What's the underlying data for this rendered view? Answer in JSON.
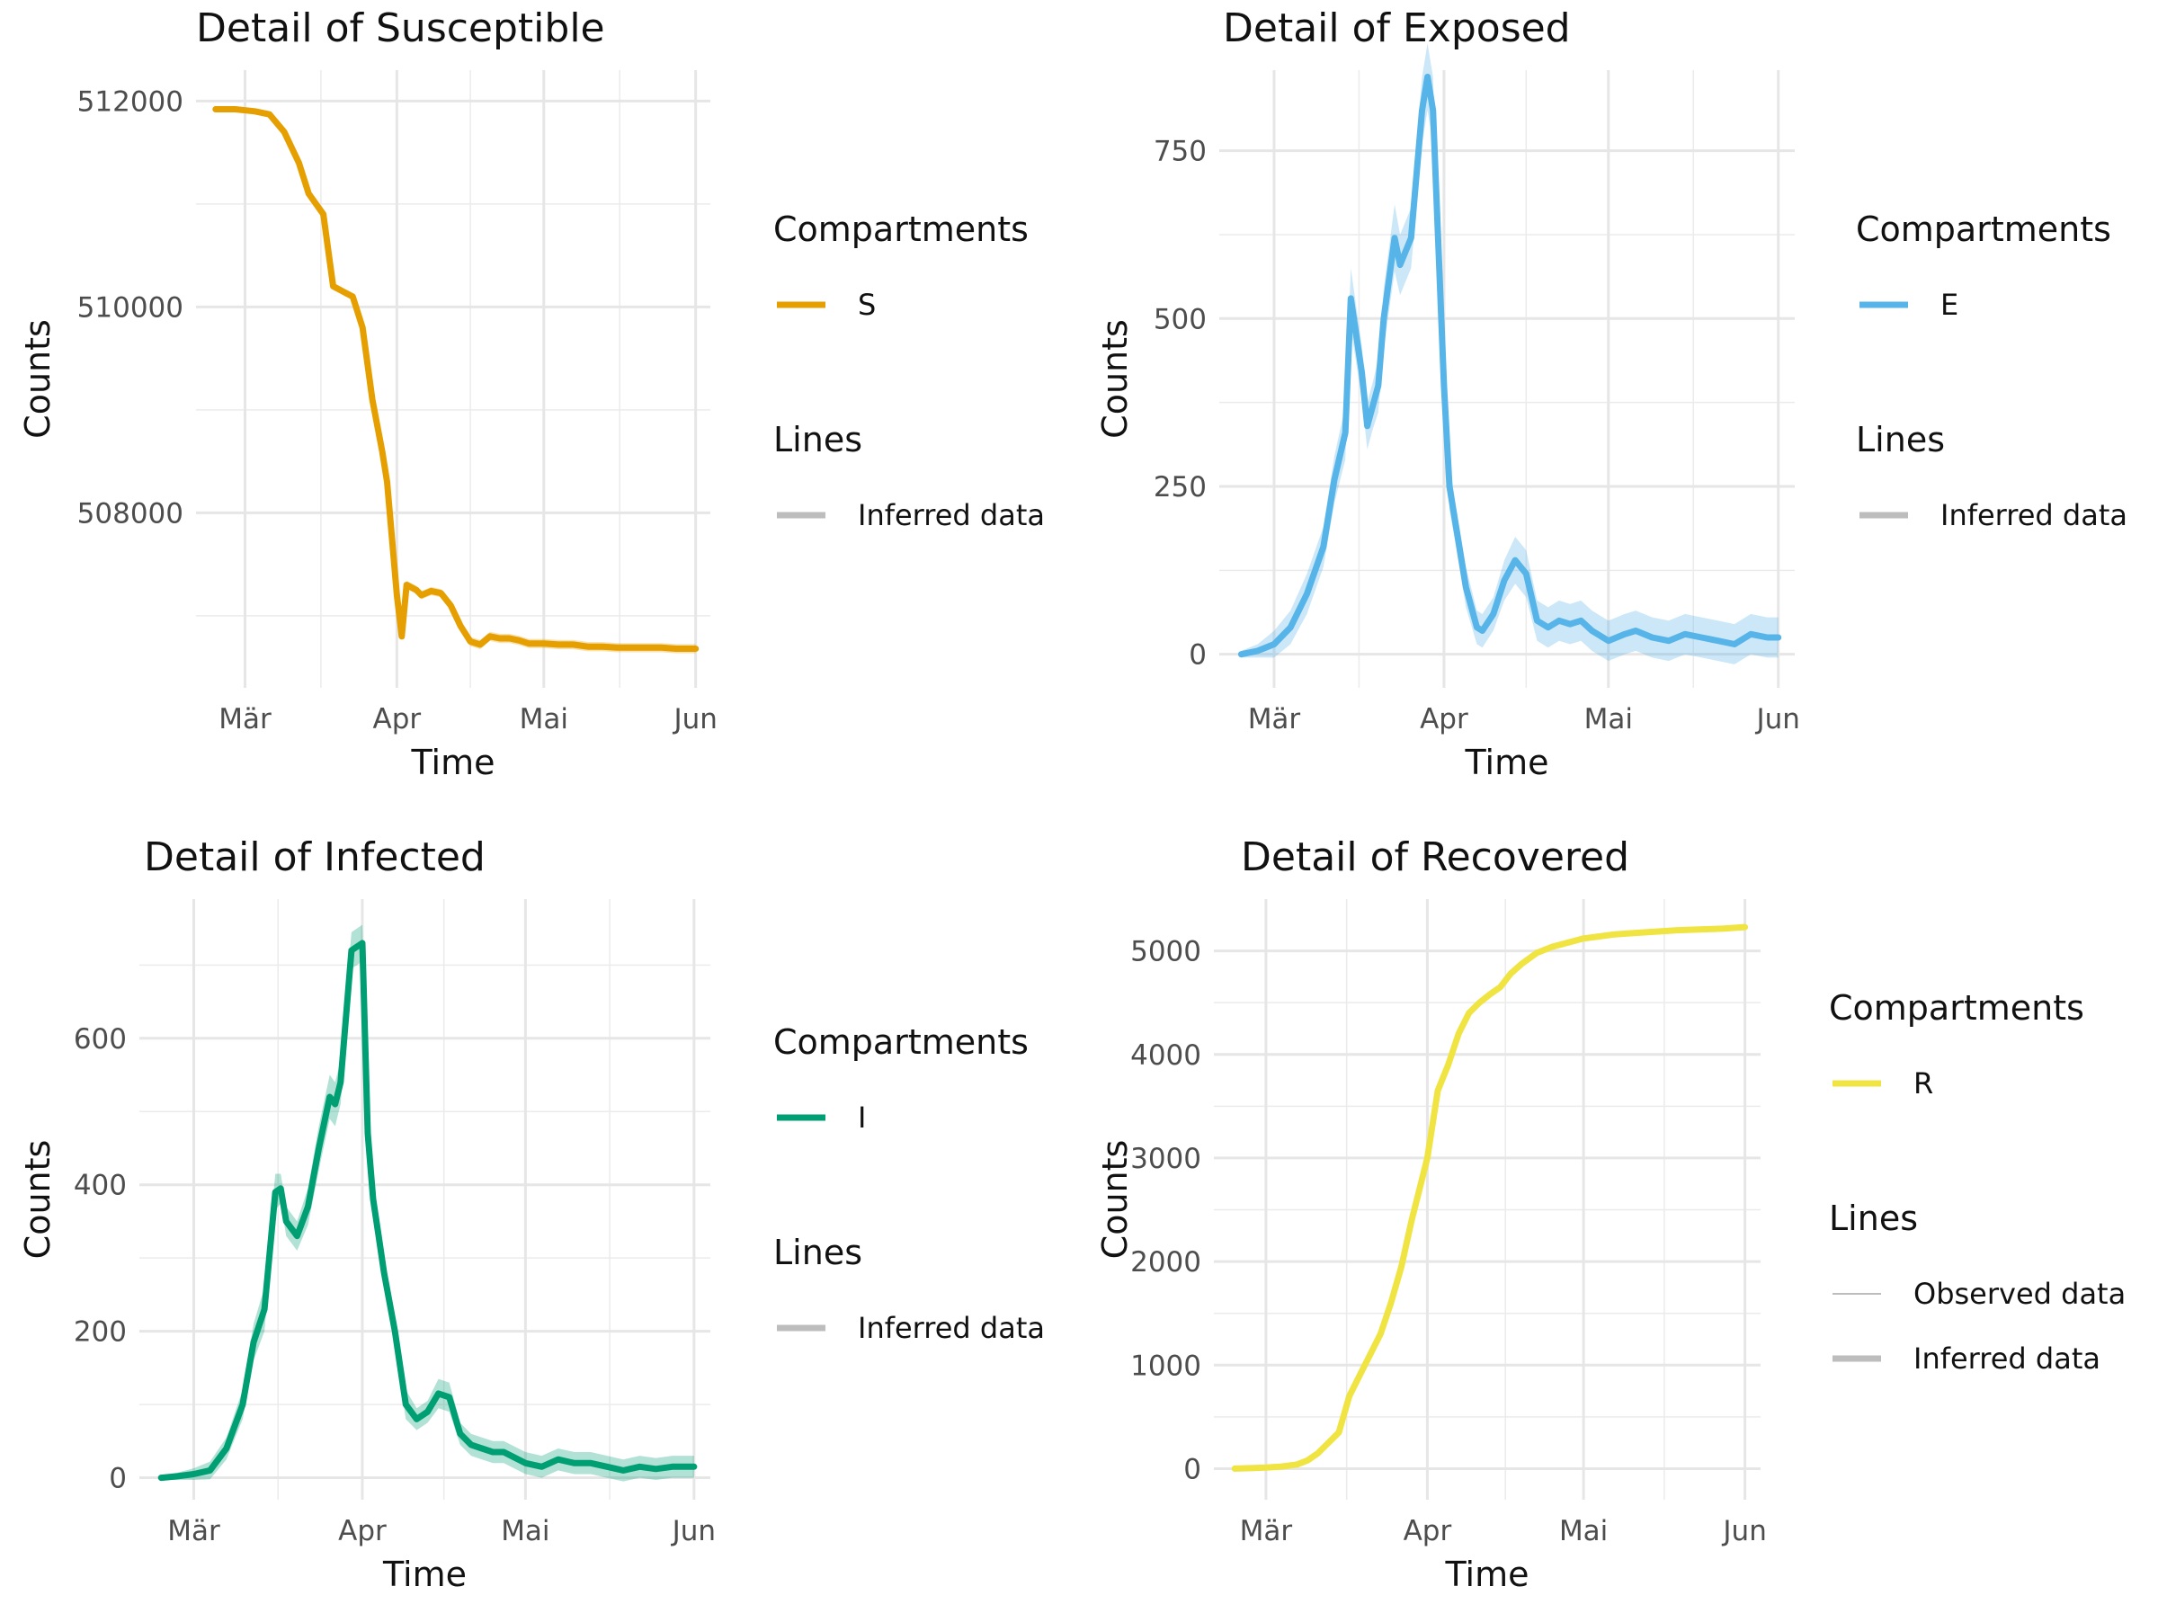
{
  "chart_data": [
    {
      "type": "line",
      "title": "Detail of Susceptible",
      "xlabel": "Time",
      "ylabel": "Counts",
      "x_ticks": [
        "Mär",
        "Apr",
        "Mai",
        "Jun"
      ],
      "y_ticks": [
        508000,
        510000,
        512000
      ],
      "ylim": [
        506300,
        512300
      ],
      "legend": {
        "position": "right",
        "compartments_title": "Compartments",
        "compartments": [
          {
            "label": "S",
            "color": "#E69F00"
          }
        ],
        "lines_title": "Lines",
        "lines": [
          "Inferred data"
        ]
      },
      "series": [
        {
          "name": "S",
          "color": "#E69F00",
          "x": [
            "2020-02-24",
            "2020-02-28",
            "2020-03-03",
            "2020-03-06",
            "2020-03-09",
            "2020-03-12",
            "2020-03-14",
            "2020-03-17",
            "2020-03-19",
            "2020-03-21",
            "2020-03-23",
            "2020-03-25",
            "2020-03-27",
            "2020-03-29",
            "2020-03-30",
            "2020-04-01",
            "2020-04-02",
            "2020-04-03",
            "2020-04-05",
            "2020-04-06",
            "2020-04-08",
            "2020-04-10",
            "2020-04-12",
            "2020-04-14",
            "2020-04-16",
            "2020-04-18",
            "2020-04-20",
            "2020-04-22",
            "2020-04-24",
            "2020-04-26",
            "2020-04-28",
            "2020-05-01",
            "2020-05-04",
            "2020-05-07",
            "2020-05-10",
            "2020-05-13",
            "2020-05-16",
            "2020-05-19",
            "2020-05-22",
            "2020-05-25",
            "2020-05-28",
            "2020-06-01"
          ],
          "y": [
            511920,
            511920,
            511900,
            511870,
            511700,
            511400,
            511100,
            510900,
            510200,
            510150,
            510100,
            509800,
            509100,
            508600,
            508300,
            507200,
            506800,
            507300,
            507250,
            507200,
            507240,
            507220,
            507100,
            506900,
            506750,
            506720,
            506800,
            506780,
            506780,
            506760,
            506730,
            506730,
            506720,
            506720,
            506700,
            506700,
            506690,
            506690,
            506690,
            506690,
            506680,
            506680
          ],
          "band": [
            30,
            30,
            30,
            30,
            30,
            30,
            30,
            30,
            30,
            30,
            30,
            30,
            30,
            30,
            30,
            40,
            40,
            40,
            40,
            40,
            40,
            40,
            40,
            45,
            45,
            45,
            45,
            45,
            45,
            45,
            45,
            45,
            45,
            45,
            45,
            45,
            45,
            45,
            45,
            45,
            45,
            45
          ]
        }
      ]
    },
    {
      "type": "line",
      "title": "Detail of Exposed",
      "xlabel": "Time",
      "ylabel": "Counts",
      "x_ticks": [
        "Mär",
        "Apr",
        "Mai",
        "Jun"
      ],
      "y_ticks": [
        0,
        250,
        500,
        750
      ],
      "ylim": [
        -50,
        870
      ],
      "legend": {
        "position": "right",
        "compartments_title": "Compartments",
        "compartments": [
          {
            "label": "E",
            "color": "#56B4E9"
          }
        ],
        "lines_title": "Lines",
        "lines": [
          "Inferred data"
        ]
      },
      "series": [
        {
          "name": "E",
          "color": "#56B4E9",
          "x": [
            "2020-02-24",
            "2020-02-27",
            "2020-03-01",
            "2020-03-04",
            "2020-03-07",
            "2020-03-10",
            "2020-03-12",
            "2020-03-14",
            "2020-03-15",
            "2020-03-17",
            "2020-03-18",
            "2020-03-19",
            "2020-03-20",
            "2020-03-21",
            "2020-03-23",
            "2020-03-24",
            "2020-03-26",
            "2020-03-28",
            "2020-03-29",
            "2020-03-30",
            "2020-04-01",
            "2020-04-02",
            "2020-04-03",
            "2020-04-04",
            "2020-04-05",
            "2020-04-07",
            "2020-04-08",
            "2020-04-10",
            "2020-04-12",
            "2020-04-14",
            "2020-04-16",
            "2020-04-18",
            "2020-04-20",
            "2020-04-22",
            "2020-04-24",
            "2020-04-26",
            "2020-04-28",
            "2020-05-01",
            "2020-05-04",
            "2020-05-06",
            "2020-05-09",
            "2020-05-12",
            "2020-05-15",
            "2020-05-18",
            "2020-05-21",
            "2020-05-24",
            "2020-05-27",
            "2020-05-30",
            "2020-06-01"
          ],
          "y": [
            0,
            5,
            15,
            40,
            90,
            160,
            260,
            330,
            530,
            420,
            340,
            370,
            400,
            500,
            620,
            580,
            620,
            810,
            860,
            810,
            400,
            250,
            200,
            150,
            100,
            40,
            35,
            60,
            110,
            140,
            120,
            50,
            40,
            50,
            45,
            50,
            35,
            20,
            30,
            35,
            25,
            20,
            30,
            25,
            20,
            15,
            30,
            25,
            25
          ],
          "band": [
            5,
            10,
            20,
            25,
            30,
            30,
            35,
            40,
            45,
            40,
            35,
            35,
            40,
            45,
            50,
            45,
            45,
            50,
            50,
            50,
            40,
            35,
            30,
            30,
            30,
            25,
            25,
            25,
            30,
            35,
            35,
            30,
            30,
            30,
            30,
            30,
            30,
            30,
            30,
            30,
            30,
            30,
            30,
            30,
            30,
            30,
            30,
            30,
            30
          ]
        }
      ]
    },
    {
      "type": "line",
      "title": "Detail of Infected",
      "xlabel": "Time",
      "ylabel": "Counts",
      "x_ticks": [
        "Mär",
        "Apr",
        "Mai",
        "Jun"
      ],
      "y_ticks": [
        0,
        200,
        400,
        600
      ],
      "ylim": [
        -30,
        790
      ],
      "legend": {
        "position": "right",
        "compartments_title": "Compartments",
        "compartments": [
          {
            "label": "I",
            "color": "#009E73"
          }
        ],
        "lines_title": "Lines",
        "lines": [
          "Inferred data"
        ]
      },
      "series": [
        {
          "name": "I",
          "color": "#009E73",
          "x": [
            "2020-02-24",
            "2020-02-27",
            "2020-03-01",
            "2020-03-04",
            "2020-03-07",
            "2020-03-10",
            "2020-03-12",
            "2020-03-14",
            "2020-03-16",
            "2020-03-17",
            "2020-03-18",
            "2020-03-20",
            "2020-03-22",
            "2020-03-24",
            "2020-03-26",
            "2020-03-27",
            "2020-03-28",
            "2020-03-30",
            "2020-04-01",
            "2020-04-02",
            "2020-04-03",
            "2020-04-04",
            "2020-04-05",
            "2020-04-07",
            "2020-04-09",
            "2020-04-11",
            "2020-04-13",
            "2020-04-15",
            "2020-04-17",
            "2020-04-19",
            "2020-04-21",
            "2020-04-23",
            "2020-04-25",
            "2020-04-27",
            "2020-05-01",
            "2020-05-04",
            "2020-05-07",
            "2020-05-10",
            "2020-05-13",
            "2020-05-16",
            "2020-05-19",
            "2020-05-22",
            "2020-05-25",
            "2020-05-28",
            "2020-06-01"
          ],
          "y": [
            0,
            2,
            5,
            10,
            40,
            100,
            185,
            230,
            390,
            395,
            350,
            330,
            370,
            450,
            520,
            510,
            540,
            720,
            730,
            470,
            380,
            330,
            280,
            200,
            100,
            80,
            90,
            115,
            110,
            60,
            45,
            40,
            35,
            35,
            20,
            15,
            25,
            20,
            20,
            15,
            10,
            15,
            12,
            15,
            15
          ],
          "band": [
            3,
            5,
            8,
            12,
            15,
            20,
            25,
            30,
            25,
            20,
            20,
            20,
            25,
            30,
            30,
            30,
            30,
            25,
            25,
            20,
            20,
            20,
            20,
            20,
            20,
            15,
            15,
            20,
            20,
            15,
            15,
            15,
            15,
            15,
            15,
            15,
            15,
            15,
            15,
            15,
            15,
            15,
            15,
            15,
            15
          ]
        }
      ]
    },
    {
      "type": "line",
      "title": "Detail of Recovered",
      "xlabel": "Time",
      "ylabel": "Counts",
      "x_ticks": [
        "Mär",
        "Apr",
        "Mai",
        "Jun"
      ],
      "y_ticks": [
        0,
        1000,
        2000,
        3000,
        4000,
        5000
      ],
      "ylim": [
        -300,
        5500
      ],
      "legend": {
        "position": "right",
        "compartments_title": "Compartments",
        "compartments": [
          {
            "label": "R",
            "color": "#F0E442"
          }
        ],
        "lines_title": "Lines",
        "lines": [
          "Observed data",
          "Inferred data"
        ]
      },
      "series": [
        {
          "name": "R",
          "color": "#F0E442",
          "x": [
            "2020-02-24",
            "2020-02-27",
            "2020-03-01",
            "2020-03-04",
            "2020-03-07",
            "2020-03-09",
            "2020-03-11",
            "2020-03-13",
            "2020-03-15",
            "2020-03-17",
            "2020-03-19",
            "2020-03-21",
            "2020-03-23",
            "2020-03-25",
            "2020-03-27",
            "2020-03-29",
            "2020-03-31",
            "2020-04-01",
            "2020-04-03",
            "2020-04-05",
            "2020-04-07",
            "2020-04-09",
            "2020-04-11",
            "2020-04-13",
            "2020-04-15",
            "2020-04-17",
            "2020-04-19",
            "2020-04-22",
            "2020-04-25",
            "2020-04-28",
            "2020-05-01",
            "2020-05-04",
            "2020-05-07",
            "2020-05-10",
            "2020-05-13",
            "2020-05-16",
            "2020-05-19",
            "2020-05-22",
            "2020-05-25",
            "2020-05-28",
            "2020-06-01"
          ],
          "y": [
            0,
            5,
            10,
            20,
            40,
            80,
            150,
            250,
            350,
            700,
            900,
            1100,
            1300,
            1600,
            1950,
            2400,
            2800,
            3000,
            3650,
            3900,
            4200,
            4400,
            4500,
            4580,
            4650,
            4780,
            4870,
            4980,
            5040,
            5080,
            5120,
            5140,
            5160,
            5170,
            5180,
            5190,
            5200,
            5205,
            5210,
            5215,
            5230
          ]
        }
      ]
    }
  ]
}
